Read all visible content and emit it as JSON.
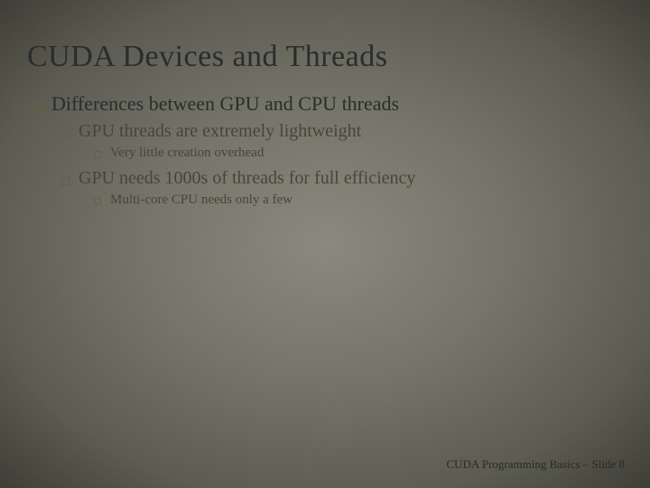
{
  "slide": {
    "title": "CUDA Devices and Threads",
    "bullets": {
      "l1": "Differences between GPU and CPU threads",
      "l2a": "GPU threads are extremely lightweight",
      "l3a": "Very little creation overhead",
      "l2b": "GPU needs 1000s of threads for full efficiency",
      "l3b": "Multi-core CPU needs only a few"
    },
    "footer": "CUDA Programming Basics – Slide  8"
  },
  "style": {
    "bg_gradient_inner": "#8a8a7e",
    "bg_gradient_mid": "#75756a",
    "bg_gradient_outer": "#3e3e36",
    "title_color": "#2c2c2c",
    "title_fontsize": 34,
    "body_color": "#2c2c2c",
    "sub_color": "#4a4438",
    "bullet_border_color": "#6b5e3e",
    "l1_fontsize": 22,
    "l2_fontsize": 20,
    "l3_fontsize": 15,
    "footer_fontsize": 13,
    "font_family": "Georgia serif"
  }
}
